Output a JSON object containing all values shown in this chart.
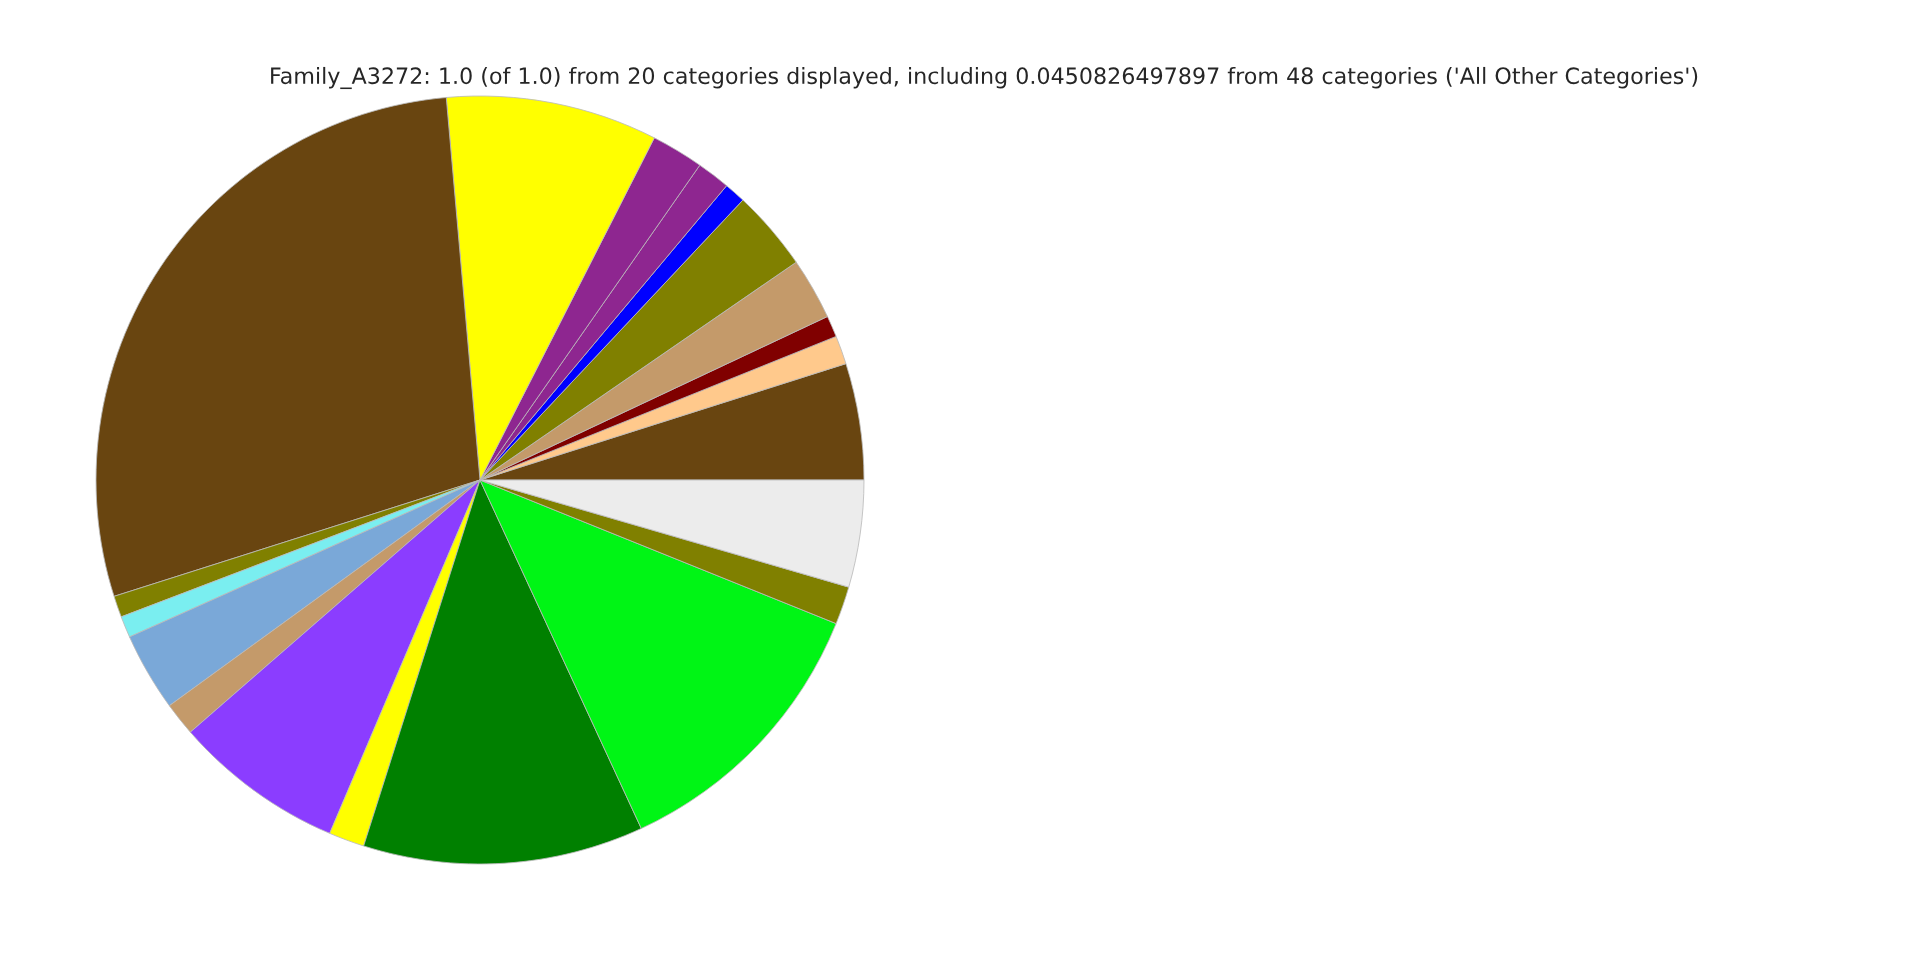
{
  "chart_data": {
    "type": "pie",
    "title": "Family_A3272: 1.0 (of 1.0) from 20 categories displayed, including 0.0450826497897 from 48 categories ('All Other Categories')",
    "categories": [
      null,
      null,
      null,
      null,
      null,
      null,
      null,
      null,
      null,
      null,
      null,
      null,
      null,
      null,
      null,
      null,
      null,
      null,
      null,
      null
    ],
    "values": [
      4.9,
      1.2,
      0.9,
      2.6,
      3.4,
      0.9,
      1.4,
      2.2,
      8.9,
      28.5,
      0.9,
      0.9,
      3.3,
      1.4,
      7.2,
      1.5,
      11.8,
      12.0,
      1.6,
      4.5
    ],
    "colors": [
      "#694510",
      "#ffc98c",
      "#800000",
      "#c49a6a",
      "#808000",
      "#0000ff",
      "#8e2690",
      "#8e2690",
      "#ffff00",
      "#694510",
      "#808000",
      "#7aeef0",
      "#7aa8d8",
      "#c49a6a",
      "#8b3dff",
      "#ffff00",
      "#008000",
      "#00f515",
      "#808000",
      "#ececec"
    ]
  }
}
